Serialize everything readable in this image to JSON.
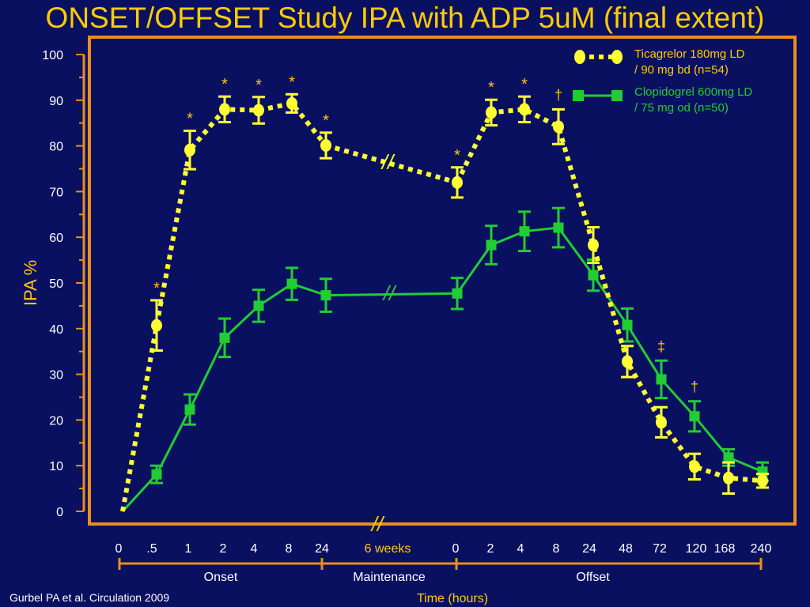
{
  "title": "ONSET/OFFSET Study IPA with ADP 5uM (final extent)",
  "citation": "Gurbel PA et al. Circulation 2009",
  "colors": {
    "background": "#0a1060",
    "frame": "#e8901a",
    "title": "#ffcc00",
    "ticagrelor": "#ffff33",
    "clopidogrel": "#22cc33",
    "text": "#ffffff"
  },
  "chart_data": {
    "type": "line",
    "ylabel": "IPA %",
    "xlabel": "Time (hours)",
    "ylim": [
      0,
      100
    ],
    "y_ticks": [
      "0",
      "10",
      "20",
      "30",
      "40",
      "50",
      "60",
      "70",
      "80",
      "90",
      "100"
    ],
    "x_tick_labels": [
      "0",
      ".5",
      "1",
      "2",
      "4",
      "8",
      "24",
      "6 weeks",
      "0",
      "2",
      "4",
      "8",
      "24",
      "48",
      "72",
      "120",
      "168",
      "240"
    ],
    "phase_labels": [
      "Onset",
      "Maintenance",
      "Offset"
    ],
    "axis_break_mark": "//",
    "series": [
      {
        "name": "Ticagrelor  180mg LD / 90 mg bd (n=54)",
        "legend_lines": [
          "Ticagrelor  180mg LD",
          "/ 90 mg bd (n=54)"
        ],
        "style": "dotted",
        "marker": "circle",
        "points": [
          {
            "x": "0",
            "y": 0,
            "err": 0,
            "sig": ""
          },
          {
            "x": ".5",
            "y": 40.7,
            "err": 5.5,
            "sig": "*"
          },
          {
            "x": "1",
            "y": 79.1,
            "err": 4.2,
            "sig": "*"
          },
          {
            "x": "2",
            "y": 88.0,
            "err": 2.8,
            "sig": "*"
          },
          {
            "x": "4",
            "y": 87.8,
            "err": 2.9,
            "sig": "*"
          },
          {
            "x": "8",
            "y": 89.3,
            "err": 2.0,
            "sig": "*"
          },
          {
            "x": "24",
            "y": 80.1,
            "err": 2.8,
            "sig": "*"
          },
          {
            "x": "0 (maintenance)",
            "y": 72.0,
            "err": 3.3,
            "sig": "*"
          },
          {
            "x": "2",
            "y": 87.3,
            "err": 2.8,
            "sig": "*"
          },
          {
            "x": "4",
            "y": 88.0,
            "err": 2.8,
            "sig": "*"
          },
          {
            "x": "8",
            "y": 84.2,
            "err": 3.8,
            "sig": "†"
          },
          {
            "x": "24",
            "y": 58.3,
            "err": 3.9,
            "sig": ""
          },
          {
            "x": "48",
            "y": 32.8,
            "err": 3.4,
            "sig": ""
          },
          {
            "x": "72",
            "y": 19.5,
            "err": 3.3,
            "sig": ""
          },
          {
            "x": "120",
            "y": 9.8,
            "err": 2.8,
            "sig": ""
          },
          {
            "x": "168",
            "y": 7.3,
            "err": 3.4,
            "sig": ""
          },
          {
            "x": "240",
            "y": 6.7,
            "err": 1.5,
            "sig": ""
          }
        ]
      },
      {
        "name": "Clopidogrel 600mg LD / 75  mg  od (n=50)",
        "legend_lines": [
          "Clopidogrel 600mg LD",
          "/ 75  mg  od (n=50)"
        ],
        "style": "solid",
        "marker": "square",
        "points": [
          {
            "x": "0",
            "y": 0,
            "err": 0,
            "sig": ""
          },
          {
            "x": ".5",
            "y": 8.1,
            "err": 1.9,
            "sig": ""
          },
          {
            "x": "1",
            "y": 22.3,
            "err": 3.3,
            "sig": ""
          },
          {
            "x": "2",
            "y": 38.0,
            "err": 4.2,
            "sig": ""
          },
          {
            "x": "4",
            "y": 45.0,
            "err": 3.5,
            "sig": ""
          },
          {
            "x": "8",
            "y": 49.8,
            "err": 3.5,
            "sig": ""
          },
          {
            "x": "24",
            "y": 47.3,
            "err": 3.6,
            "sig": ""
          },
          {
            "x": "0 (maintenance)",
            "y": 47.7,
            "err": 3.4,
            "sig": ""
          },
          {
            "x": "2",
            "y": 58.3,
            "err": 4.2,
            "sig": ""
          },
          {
            "x": "4",
            "y": 61.3,
            "err": 4.3,
            "sig": ""
          },
          {
            "x": "8",
            "y": 62.1,
            "err": 4.3,
            "sig": ""
          },
          {
            "x": "24",
            "y": 51.7,
            "err": 3.4,
            "sig": ""
          },
          {
            "x": "48",
            "y": 40.8,
            "err": 3.6,
            "sig": ""
          },
          {
            "x": "72",
            "y": 28.9,
            "err": 4.1,
            "sig": "‡"
          },
          {
            "x": "120",
            "y": 20.8,
            "err": 3.3,
            "sig": "†"
          },
          {
            "x": "168",
            "y": 11.8,
            "err": 1.8,
            "sig": ""
          },
          {
            "x": "240",
            "y": 8.7,
            "err": 2.0,
            "sig": ""
          }
        ]
      }
    ]
  }
}
